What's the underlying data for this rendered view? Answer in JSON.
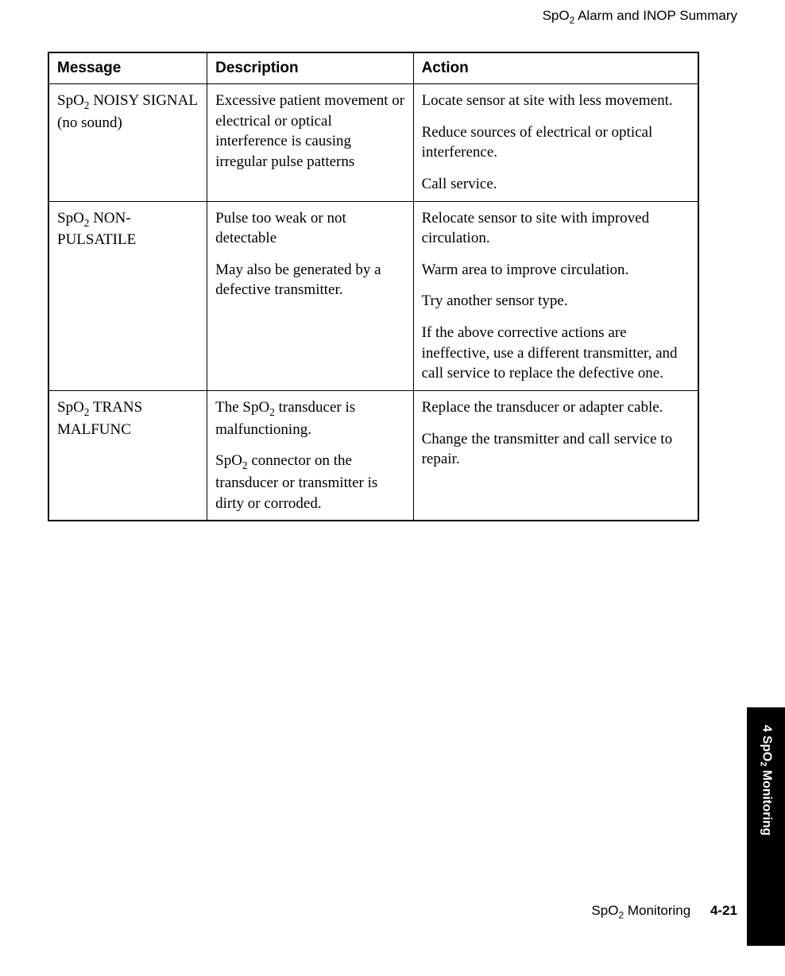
{
  "header": {
    "title_prefix": "SpO",
    "title_sub": "2",
    "title_suffix": " Alarm and INOP Summary"
  },
  "table": {
    "columns": [
      "Message",
      "Description",
      "Action"
    ],
    "rows": [
      {
        "message_prefix": "SpO",
        "message_sub": "2",
        "message_suffix": " NOISY SIGNAL (no sound)",
        "description_paras": [
          "Excessive patient movement or electrical or optical interference is causing irregular pulse patterns"
        ],
        "action_paras": [
          "Locate sensor at site with less movement.",
          "Reduce sources of electrical or optical interference.",
          "Call service."
        ]
      },
      {
        "message_prefix": "SpO",
        "message_sub": "2",
        "message_suffix": " NON-PULSATILE",
        "description_paras": [
          "Pulse too weak or not detectable",
          "May also be generated by a defective transmitter."
        ],
        "action_paras": [
          "Relocate sensor to site with improved circulation.",
          "Warm area to improve circulation.",
          "Try another sensor type.",
          "If the above corrective actions are ineffective, use a different transmitter, and call service to replace the defective one."
        ]
      },
      {
        "message_prefix": "SpO",
        "message_sub": "2",
        "message_suffix": " TRANS MALFUNC",
        "description_html_paras": [
          {
            "pre": "The SpO",
            "sub": "2",
            "post": " transducer is malfunctioning."
          },
          {
            "pre": "SpO",
            "sub": "2",
            "post": " connector on the transducer or transmitter is dirty or corroded."
          }
        ],
        "action_paras": [
          "Replace the transducer or adapter cable.",
          "Change the transmitter and call service to repair."
        ]
      }
    ]
  },
  "side_tab": {
    "prefix": "4 ",
    "label_pre": "SpO",
    "label_sub": "2",
    "label_post": " Monitoring"
  },
  "footer": {
    "label_pre": "SpO",
    "label_sub": "2",
    "label_post": " Monitoring",
    "page_number": "4-21"
  }
}
